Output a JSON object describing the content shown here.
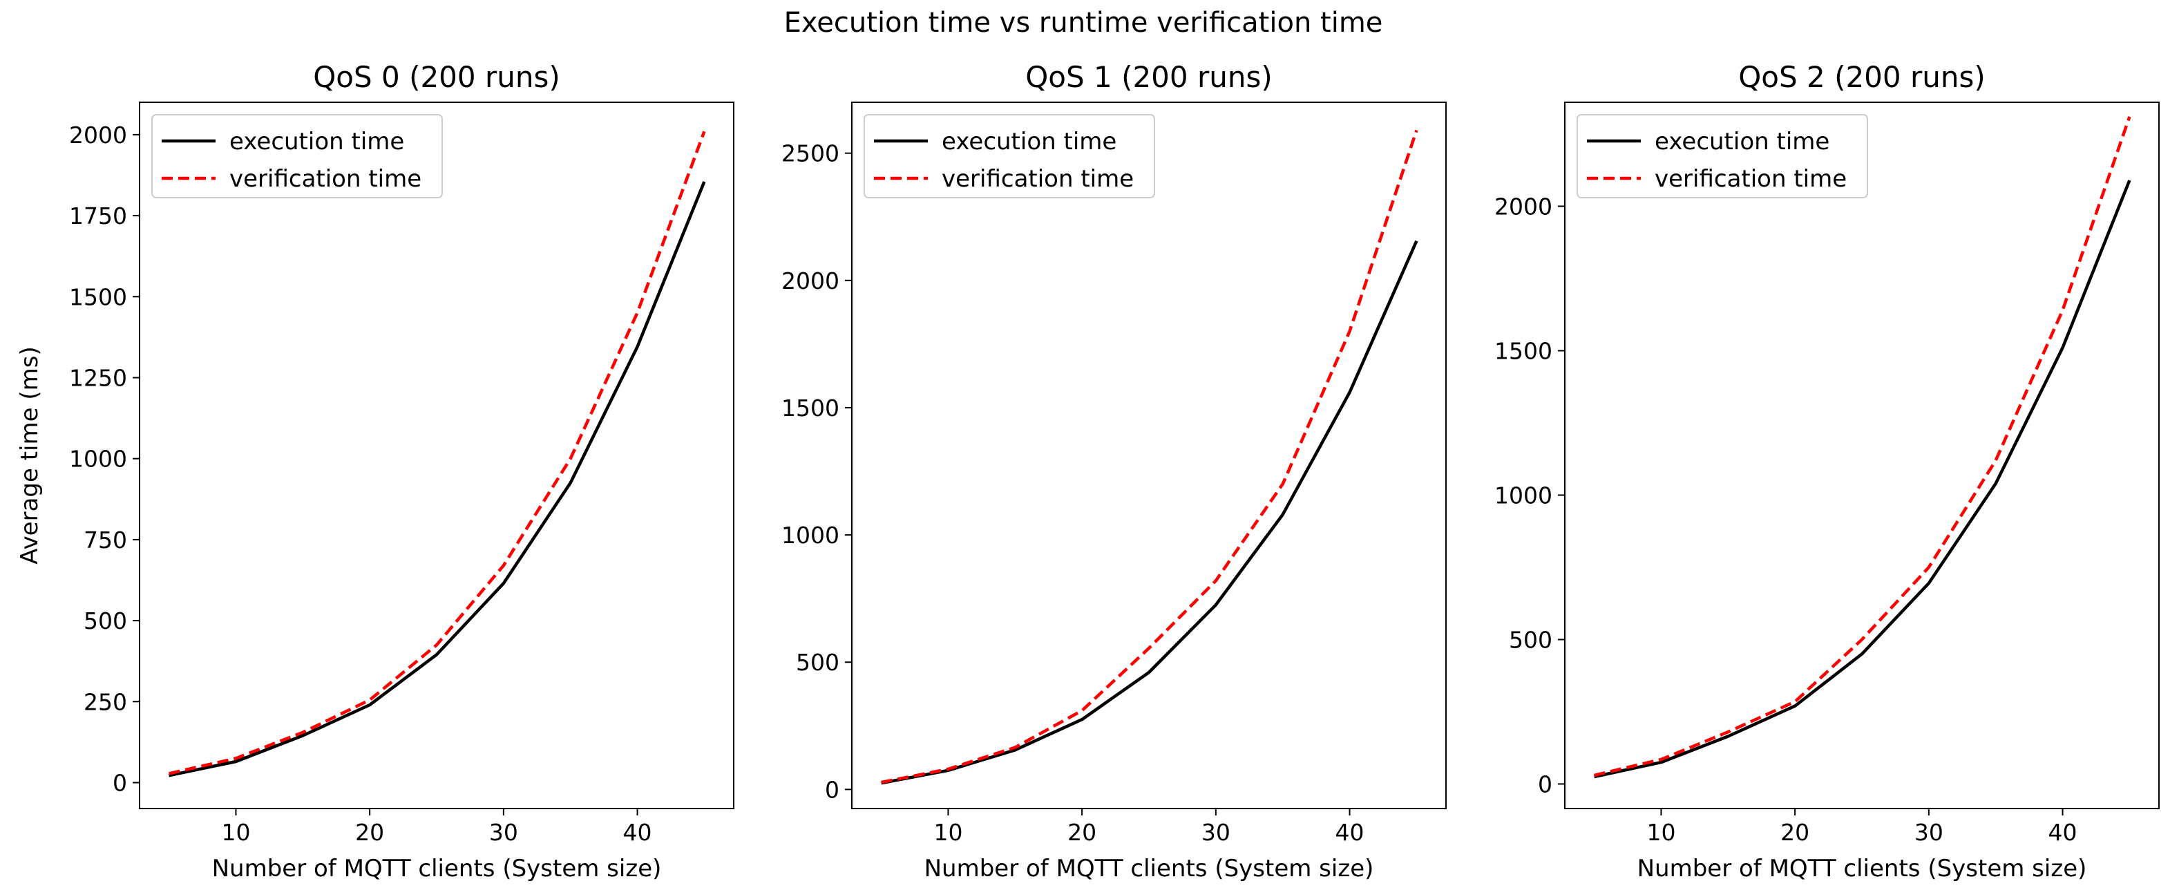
{
  "figure": {
    "title": "Execution time vs runtime verification time"
  },
  "chart_data": [
    {
      "type": "line",
      "title": "QoS 0 (200 runs)",
      "xlabel": "Number of MQTT clients (System size)",
      "ylabel": "Average time (ms)",
      "xlim": [
        2.8,
        47.2
      ],
      "ylim": [
        -80,
        2100
      ],
      "xticks": [
        10,
        20,
        30,
        40
      ],
      "yticks": [
        0,
        250,
        500,
        750,
        1000,
        1250,
        1500,
        1750,
        2000
      ],
      "grid": false,
      "legend": "upper-left",
      "x": [
        5,
        10,
        15,
        20,
        25,
        30,
        35,
        40,
        45
      ],
      "series": [
        {
          "name": "execution time",
          "color": "#000000",
          "style": "solid",
          "values": [
            22,
            65,
            145,
            240,
            395,
            615,
            925,
            1345,
            1855
          ]
        },
        {
          "name": "verification time",
          "color": "#ff0000",
          "style": "dashed",
          "values": [
            28,
            75,
            155,
            255,
            425,
            670,
            1000,
            1450,
            2010
          ]
        }
      ]
    },
    {
      "type": "line",
      "title": "QoS 1 (200 runs)",
      "xlabel": "Number of MQTT clients (System size)",
      "ylabel": "",
      "xlim": [
        2.8,
        47.2
      ],
      "ylim": [
        -75,
        2700
      ],
      "xticks": [
        10,
        20,
        30,
        40
      ],
      "yticks": [
        0,
        500,
        1000,
        1500,
        2000,
        2500
      ],
      "grid": false,
      "legend": "upper-left",
      "x": [
        5,
        10,
        15,
        20,
        25,
        30,
        35,
        40,
        45
      ],
      "series": [
        {
          "name": "execution time",
          "color": "#000000",
          "style": "solid",
          "values": [
            25,
            75,
            155,
            275,
            460,
            725,
            1080,
            1560,
            2155
          ]
        },
        {
          "name": "verification time",
          "color": "#ff0000",
          "style": "dashed",
          "values": [
            28,
            80,
            165,
            310,
            555,
            820,
            1200,
            1800,
            2590
          ]
        }
      ]
    },
    {
      "type": "line",
      "title": "QoS 2 (200 runs)",
      "xlabel": "Number of MQTT clients (System size)",
      "ylabel": "",
      "xlim": [
        2.8,
        47.2
      ],
      "ylim": [
        -85,
        2360
      ],
      "xticks": [
        10,
        20,
        30,
        40
      ],
      "yticks": [
        0,
        500,
        1000,
        1500,
        2000
      ],
      "grid": false,
      "legend": "upper-left",
      "x": [
        5,
        10,
        15,
        20,
        25,
        30,
        35,
        40,
        45
      ],
      "series": [
        {
          "name": "execution time",
          "color": "#000000",
          "style": "solid",
          "values": [
            25,
            75,
            165,
            270,
            450,
            695,
            1040,
            1510,
            2090
          ]
        },
        {
          "name": "verification time",
          "color": "#ff0000",
          "style": "dashed",
          "values": [
            30,
            85,
            180,
            285,
            500,
            750,
            1120,
            1640,
            2310
          ]
        }
      ]
    }
  ]
}
